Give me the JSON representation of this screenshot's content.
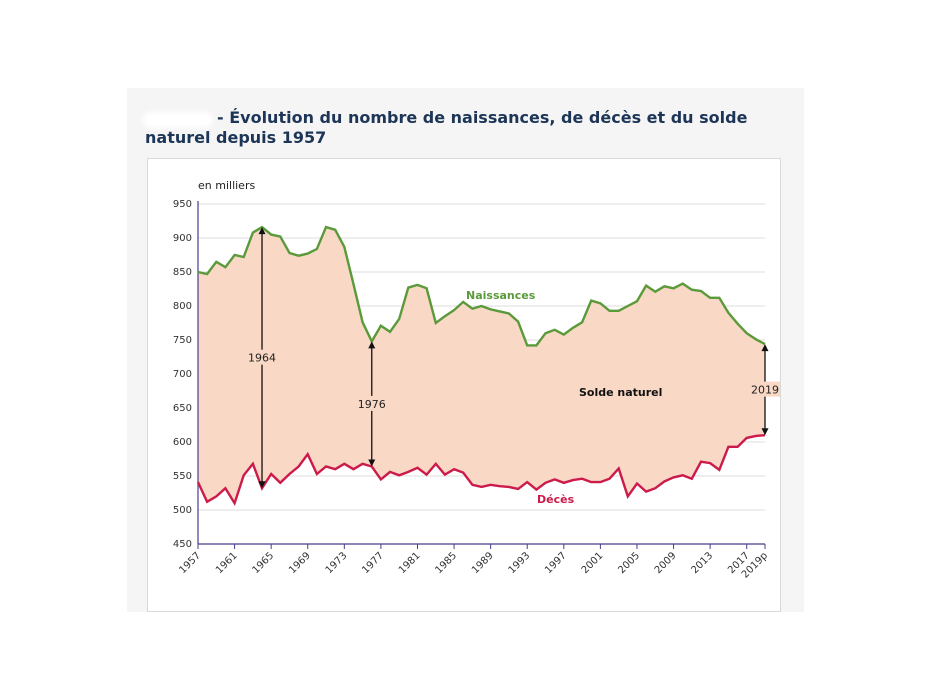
{
  "title": "- Évolution du nombre de naissances, de décès et du solde naturel depuis 1957",
  "chart_data": {
    "type": "line",
    "unit_label": "en milliers",
    "ylim": [
      450,
      950
    ],
    "yticks": [
      450,
      500,
      550,
      600,
      650,
      700,
      750,
      800,
      850,
      900,
      950
    ],
    "x": [
      1957,
      1958,
      1959,
      1960,
      1961,
      1962,
      1963,
      1964,
      1965,
      1966,
      1967,
      1968,
      1969,
      1970,
      1971,
      1972,
      1973,
      1974,
      1975,
      1976,
      1977,
      1978,
      1979,
      1980,
      1981,
      1982,
      1983,
      1984,
      1985,
      1986,
      1987,
      1988,
      1989,
      1990,
      1991,
      1992,
      1993,
      1994,
      1995,
      1996,
      1997,
      1998,
      1999,
      2000,
      2001,
      2002,
      2003,
      2004,
      2005,
      2006,
      2007,
      2008,
      2009,
      2010,
      2011,
      2012,
      2013,
      2014,
      2015,
      2016,
      2017,
      2018,
      2019
    ],
    "xtick_labels": [
      "1957",
      "1961",
      "1965",
      "1969",
      "1973",
      "1977",
      "1981",
      "1985",
      "1989",
      "1993",
      "1997",
      "2001",
      "2005",
      "2009",
      "2013",
      "2017",
      "2019p"
    ],
    "xtick_years": [
      1957,
      1961,
      1965,
      1969,
      1973,
      1977,
      1981,
      1985,
      1989,
      1993,
      1997,
      2001,
      2005,
      2009,
      2013,
      2017,
      2019
    ],
    "grid": true,
    "series": [
      {
        "name": "Naissances",
        "color": "#5a9a3a",
        "values": [
          850,
          847,
          865,
          857,
          875,
          872,
          908,
          916,
          905,
          902,
          878,
          874,
          877,
          884,
          916,
          912,
          887,
          832,
          776,
          748,
          771,
          762,
          781,
          827,
          831,
          826,
          775,
          785,
          794,
          806,
          796,
          800,
          795,
          792,
          789,
          777,
          742,
          742,
          760,
          765,
          758,
          768,
          776,
          808,
          804,
          793,
          793,
          800,
          807,
          830,
          821,
          829,
          826,
          833,
          824,
          822,
          812,
          812,
          790,
          774,
          760,
          751,
          744
        ]
      },
      {
        "name": "Décès",
        "color": "#cc1a4a",
        "values": [
          541,
          512,
          520,
          532,
          510,
          551,
          568,
          532,
          553,
          540,
          553,
          564,
          582,
          553,
          564,
          560,
          568,
          560,
          568,
          564,
          545,
          556,
          551,
          556,
          562,
          552,
          568,
          552,
          560,
          555,
          537,
          534,
          537,
          535,
          534,
          531,
          541,
          530,
          540,
          545,
          540,
          544,
          546,
          541,
          541,
          546,
          561,
          520,
          539,
          527,
          532,
          542,
          548,
          551,
          546,
          571,
          569,
          559,
          593,
          593,
          606,
          609,
          610
        ]
      }
    ],
    "annotations": [
      {
        "label": "1964",
        "year": 1964,
        "from": 916,
        "to": 532
      },
      {
        "label": "1976",
        "year": 1976,
        "from": 748,
        "to": 564
      },
      {
        "label": "2019",
        "year": 2019,
        "from": 744,
        "to": 610
      }
    ],
    "area_label": "Solde naturel",
    "area_color": "#f9d8c6",
    "axis_color": "#4a3c8c"
  }
}
